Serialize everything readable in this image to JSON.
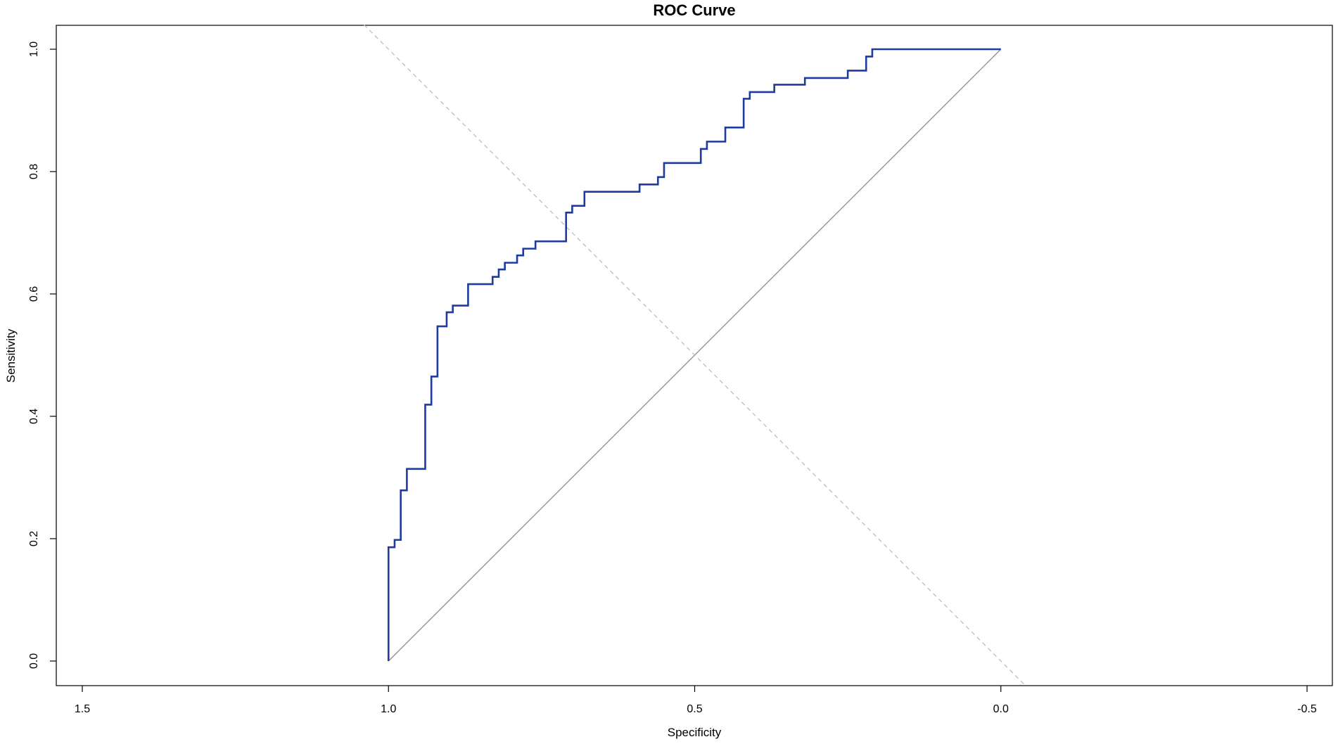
{
  "chart_data": {
    "type": "line",
    "title": "ROC Curve",
    "xlabel": "Specificity",
    "ylabel": "Sensitivity",
    "x_reversed": true,
    "xlim": [
      1.5,
      -0.5
    ],
    "ylim": [
      0.0,
      1.0
    ],
    "x_ticks": [
      1.5,
      1.0,
      0.5,
      0.0,
      -0.5
    ],
    "x_tick_labels": [
      "1.5",
      "1.0",
      "0.5",
      "0.0",
      "-0.5"
    ],
    "y_ticks": [
      0.0,
      0.2,
      0.4,
      0.6,
      0.8,
      1.0
    ],
    "y_tick_labels": [
      "0.0",
      "0.2",
      "0.4",
      "0.6",
      "0.8",
      "1.0"
    ],
    "grid": false,
    "legend": "none",
    "reference_lines": [
      {
        "style": "solid",
        "color": "#8c8c8c",
        "points": [
          [
            1.0,
            0.0
          ],
          [
            0.0,
            1.0
          ]
        ]
      },
      {
        "style": "dashed",
        "color": "#bdbdbd",
        "points": [
          [
            1.04,
            1.04
          ],
          [
            -0.04,
            -0.04
          ]
        ]
      }
    ],
    "series": [
      {
        "color": "#1f3b9e",
        "style": "step",
        "points": [
          [
            1.0,
            0.0
          ],
          [
            1.0,
            0.186
          ],
          [
            0.99,
            0.186
          ],
          [
            0.99,
            0.198
          ],
          [
            0.98,
            0.198
          ],
          [
            0.98,
            0.279
          ],
          [
            0.97,
            0.279
          ],
          [
            0.97,
            0.314
          ],
          [
            0.94,
            0.314
          ],
          [
            0.94,
            0.419
          ],
          [
            0.93,
            0.419
          ],
          [
            0.93,
            0.465
          ],
          [
            0.92,
            0.465
          ],
          [
            0.92,
            0.547
          ],
          [
            0.905,
            0.547
          ],
          [
            0.905,
            0.57
          ],
          [
            0.895,
            0.57
          ],
          [
            0.895,
            0.581
          ],
          [
            0.87,
            0.581
          ],
          [
            0.87,
            0.616
          ],
          [
            0.83,
            0.616
          ],
          [
            0.83,
            0.628
          ],
          [
            0.82,
            0.628
          ],
          [
            0.82,
            0.64
          ],
          [
            0.81,
            0.64
          ],
          [
            0.81,
            0.651
          ],
          [
            0.79,
            0.651
          ],
          [
            0.79,
            0.663
          ],
          [
            0.78,
            0.663
          ],
          [
            0.78,
            0.674
          ],
          [
            0.76,
            0.674
          ],
          [
            0.76,
            0.686
          ],
          [
            0.71,
            0.686
          ],
          [
            0.71,
            0.733
          ],
          [
            0.7,
            0.733
          ],
          [
            0.7,
            0.744
          ],
          [
            0.68,
            0.744
          ],
          [
            0.68,
            0.767
          ],
          [
            0.59,
            0.767
          ],
          [
            0.59,
            0.779
          ],
          [
            0.56,
            0.779
          ],
          [
            0.56,
            0.791
          ],
          [
            0.55,
            0.791
          ],
          [
            0.55,
            0.814
          ],
          [
            0.49,
            0.814
          ],
          [
            0.49,
            0.837
          ],
          [
            0.48,
            0.837
          ],
          [
            0.48,
            0.849
          ],
          [
            0.45,
            0.849
          ],
          [
            0.45,
            0.872
          ],
          [
            0.42,
            0.872
          ],
          [
            0.42,
            0.919
          ],
          [
            0.41,
            0.919
          ],
          [
            0.41,
            0.93
          ],
          [
            0.37,
            0.93
          ],
          [
            0.37,
            0.942
          ],
          [
            0.32,
            0.942
          ],
          [
            0.32,
            0.953
          ],
          [
            0.25,
            0.953
          ],
          [
            0.25,
            0.965
          ],
          [
            0.22,
            0.965
          ],
          [
            0.22,
            0.988
          ],
          [
            0.21,
            0.988
          ],
          [
            0.21,
            1.0
          ],
          [
            0.0,
            1.0
          ]
        ]
      }
    ]
  }
}
